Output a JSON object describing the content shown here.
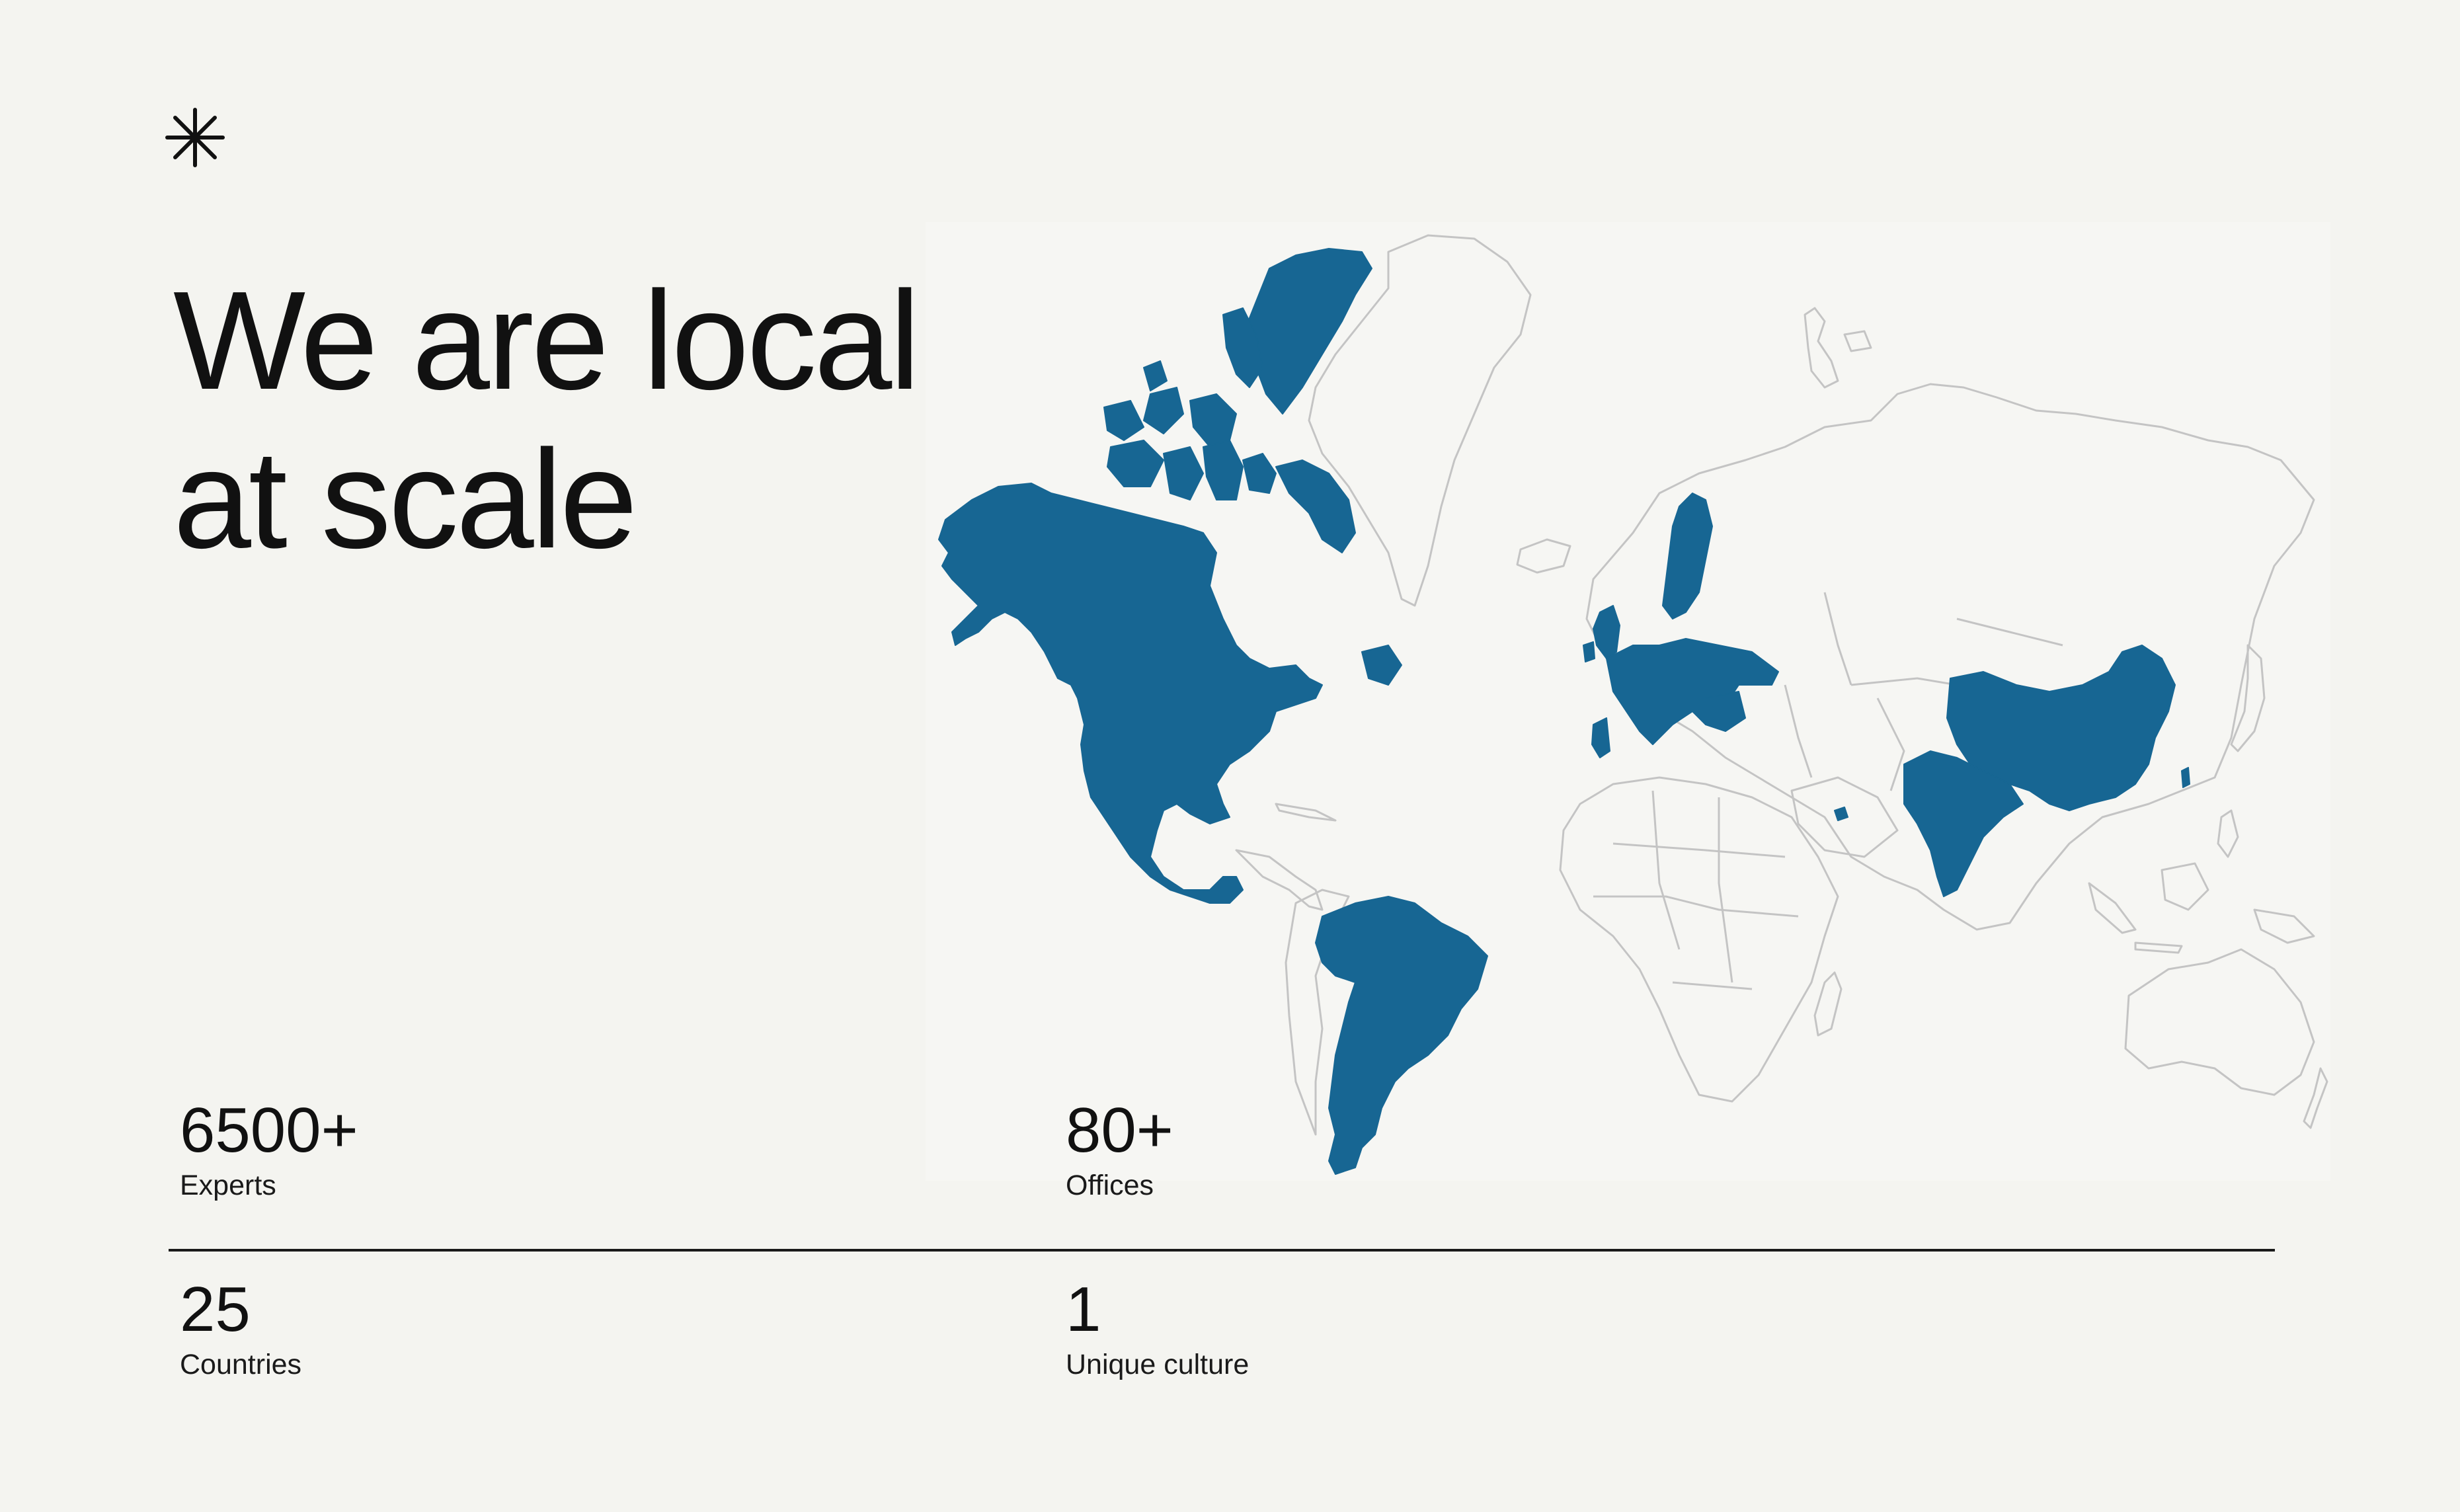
{
  "logo": {
    "icon": "asterisk-icon"
  },
  "heading": {
    "line1": "We are local",
    "line2": "at scale"
  },
  "stats": [
    {
      "value": "6500+",
      "label": "Experts"
    },
    {
      "value": "80+",
      "label": "Offices"
    },
    {
      "value": "25",
      "label": "Countries"
    },
    {
      "value": "1",
      "label": "Unique culture"
    }
  ],
  "map": {
    "highlight_color": "#176693",
    "outline_color": "#c4c4c4",
    "background": "#f6f6f3"
  }
}
